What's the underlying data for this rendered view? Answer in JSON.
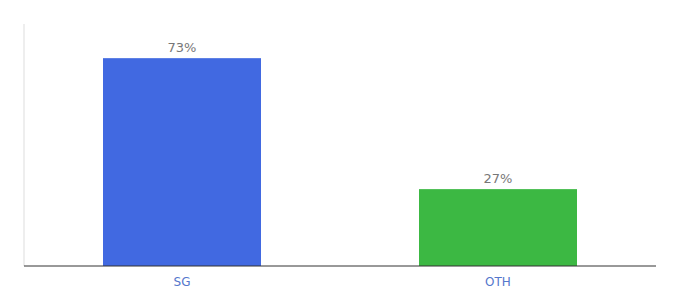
{
  "chart_data": {
    "type": "bar",
    "categories": [
      "SG",
      "OTH"
    ],
    "values": [
      73,
      27
    ],
    "value_labels": [
      "73%",
      "27%"
    ],
    "colors": [
      "#4169E1",
      "#3CB843"
    ],
    "ylim": [
      0,
      85
    ],
    "tick_labels": "x",
    "data_labels": true,
    "grid": false
  }
}
